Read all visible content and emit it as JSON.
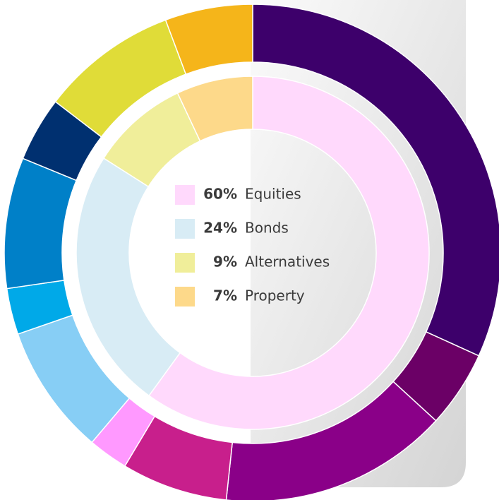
{
  "chart_data": {
    "type": "pie",
    "rings": [
      {
        "categories": [
          "Equities",
          "Bonds",
          "Alternatives",
          "Property"
        ],
        "values": [
          60,
          24,
          9,
          7
        ],
        "value_labels": [
          "60%",
          "24%",
          "9%",
          "7%"
        ],
        "colors": [
          "#ffd9fc",
          "#d8ecf5",
          "#f0ee9a",
          "#fdd98a"
        ]
      },
      {
        "values": [
          31.8,
          5,
          14.9,
          6.9,
          2.6,
          8.5,
          3,
          8.5,
          4.2,
          8.9,
          5.7
        ],
        "colors": [
          "#3d006b",
          "#6b0066",
          "#8a0088",
          "#c81f8c",
          "#ff99ff",
          "#87cef5",
          "#00a9e8",
          "#0080c8",
          "#003070",
          "#e0dc38",
          "#f5b51a"
        ]
      }
    ]
  }
}
